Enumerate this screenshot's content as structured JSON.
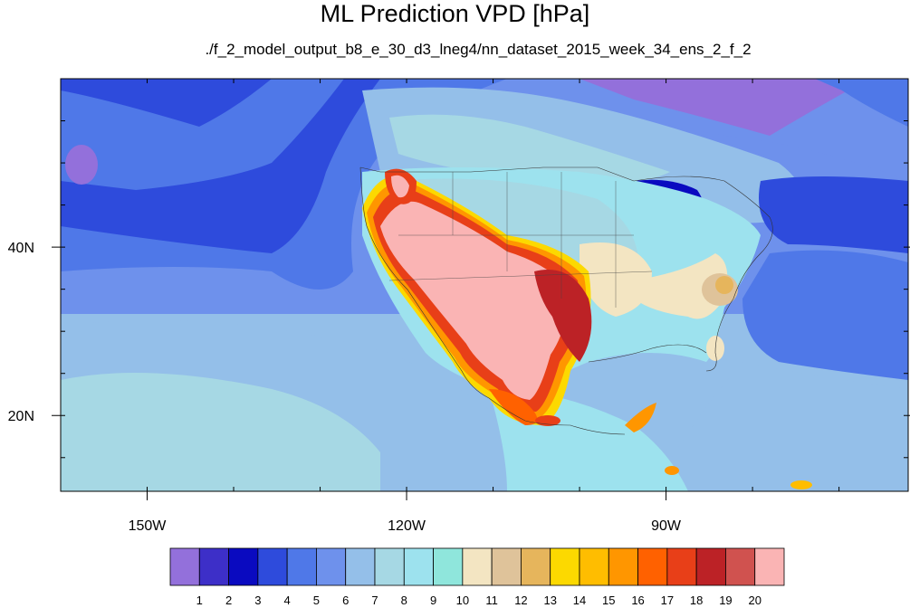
{
  "title": "ML Prediction VPD [hPa]",
  "subtitle": "./f_2_model_output_b8_e_30_d3_lneg4/nn_dataset_2015_week_34_ens_2_f_2",
  "axes": {
    "lon_ticks": [
      {
        "lon": -150,
        "label": "150W"
      },
      {
        "lon": -120,
        "label": "120W"
      },
      {
        "lon": -90,
        "label": "90W"
      }
    ],
    "lat_ticks": [
      {
        "lat": 40,
        "label": "40N"
      },
      {
        "lat": 20,
        "label": "20N"
      }
    ],
    "lon_range": [
      -160,
      -62
    ],
    "lat_range": [
      11,
      60
    ]
  },
  "colorbar": {
    "colors": [
      "#9370db",
      "#3d2fc8",
      "#0a0ac0",
      "#2e4bdc",
      "#4f78e8",
      "#6e91ec",
      "#94bfe9",
      "#a6d8e4",
      "#9de2ee",
      "#8fe6dc",
      "#f3e5c2",
      "#dfc39a",
      "#e6b55c",
      "#fcd900",
      "#ffbd00",
      "#ff9600",
      "#ff6100",
      "#e83f18",
      "#bc2226",
      "#d0524f",
      "#fab4b4"
    ],
    "labels": [
      "1",
      "2",
      "3",
      "4",
      "5",
      "6",
      "7",
      "8",
      "9",
      "10",
      "11",
      "12",
      "13",
      "14",
      "15",
      "16",
      "17",
      "18",
      "19",
      "20"
    ]
  }
}
